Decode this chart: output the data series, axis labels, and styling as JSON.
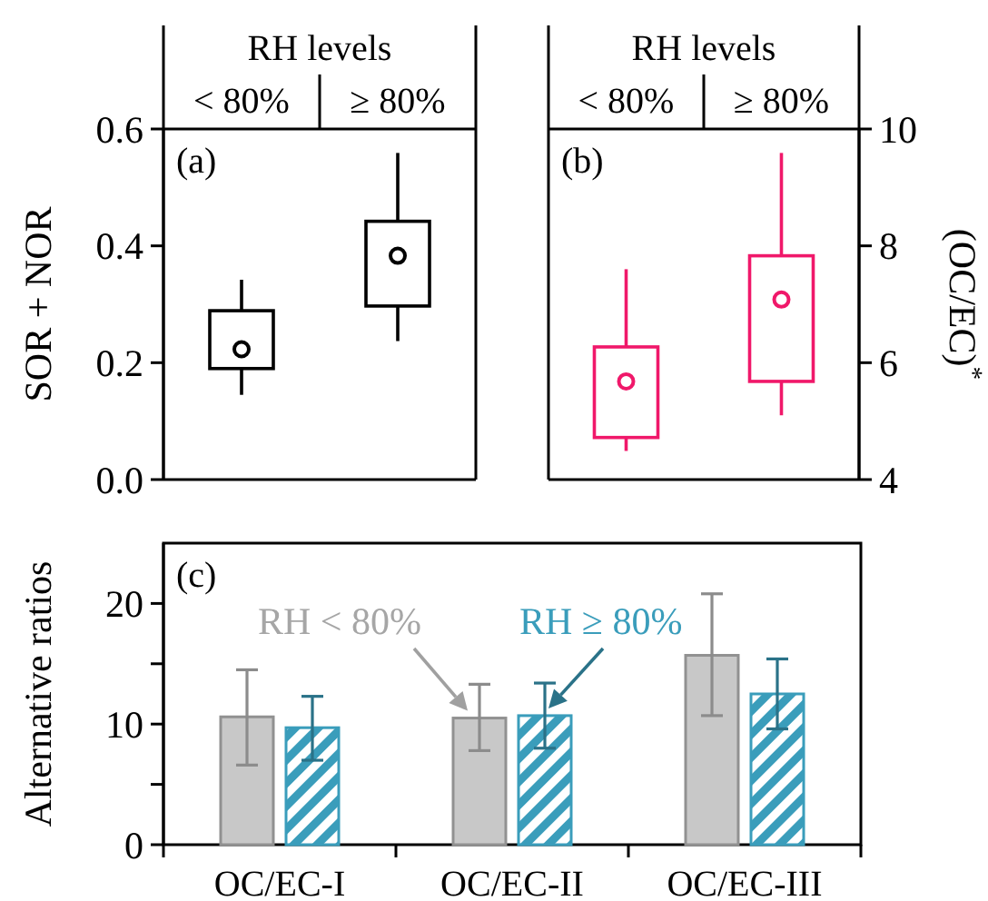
{
  "chart_data": [
    {
      "type": "box",
      "xlabel": "RH levels",
      "categories": [
        "< 80%",
        "≥ 80%"
      ],
      "ylabel": "SOR + NOR",
      "ylim": [
        0,
        0.6
      ],
      "yticks": [
        {
          "value": 0,
          "label": "0.0"
        },
        {
          "value": 0.2,
          "label": "0.2"
        },
        {
          "value": 0.4,
          "label": "0.4"
        },
        {
          "value": 0.6,
          "label": "0.6"
        }
      ],
      "annotations": [
        "(a)"
      ],
      "series": [
        {
          "color": "#000000",
          "boxes": [
            {
              "low": 0.145,
              "q1": 0.19,
              "median": null,
              "q3": 0.289,
              "high": 0.342,
              "mean": 0.223
            },
            {
              "low": 0.237,
              "q1": 0.297,
              "median": null,
              "q3": 0.442,
              "high": 0.559,
              "mean": 0.383
            }
          ]
        }
      ]
    },
    {
      "type": "box",
      "xlabel": "RH levels",
      "categories": [
        "< 80%",
        "≥ 80%"
      ],
      "y2label": "(OC/EC)$^{*}$",
      "y2lim": [
        4,
        10
      ],
      "y2ticks": [
        4,
        6,
        8,
        10
      ],
      "annotations": [
        "(b)"
      ],
      "series": [
        {
          "color": "#f0186a",
          "axis": "y2",
          "boxes": [
            {
              "low": 4.49,
              "q1": 4.72,
              "median": null,
              "q3": 6.27,
              "high": 7.6,
              "mean": 5.68
            },
            {
              "low": 5.1,
              "q1": 5.68,
              "median": null,
              "q3": 7.83,
              "high": 9.59,
              "mean": 7.08
            }
          ]
        }
      ]
    },
    {
      "type": "bar",
      "categories": [
        "OC/EC-I",
        "OC/EC-II",
        "OC/EC-III"
      ],
      "ylabel": "Alternative ratios",
      "ylim": [
        0,
        25
      ],
      "yticks": [
        0,
        {
          "value": 5,
          "label": null
        },
        10,
        {
          "value": 15,
          "label": null
        },
        20
      ],
      "annotations": [
        "(c)"
      ],
      "legend": false,
      "series": [
        {
          "name": "RH < 80%",
          "color": "#c8c8c8",
          "values": [
            10.6,
            10.5,
            15.7
          ],
          "errors": [
            [
              6.6,
              14.5
            ],
            [
              7.8,
              13.3
            ],
            [
              10.7,
              20.8
            ]
          ]
        },
        {
          "name": "RH ≥ 80%",
          "color": "#3a9dbb",
          "values": [
            9.7,
            10.7,
            12.5
          ],
          "errors": [
            [
              7.0,
              12.3
            ],
            [
              8.0,
              13.4
            ],
            [
              9.6,
              15.4
            ]
          ]
        }
      ]
    }
  ]
}
